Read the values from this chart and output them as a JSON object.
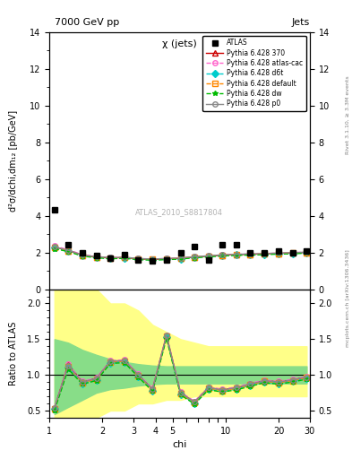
{
  "title_top": "7000 GeV pp",
  "title_right": "Jets",
  "plot_title": "χ (jets)",
  "xlabel": "chi",
  "ylabel_main": "d²σ/dchi,dm₁₂ [pb/GeV]",
  "ylabel_ratio": "Ratio to ATLAS",
  "watermark": "ATLAS_2010_S8817804",
  "rivet_label": "Rivet 3.1.10, ≥ 3.3M events",
  "arxiv_label": "mcplots.cern.ch [arXiv:1306.3436]",
  "xlim": [
    1,
    30
  ],
  "ylim_main": [
    0,
    14
  ],
  "ylim_ratio": [
    0.4,
    2.2
  ],
  "chi_values": [
    1.07,
    1.28,
    1.54,
    1.85,
    2.22,
    2.67,
    3.2,
    3.85,
    4.62,
    5.55,
    6.66,
    8.0,
    9.6,
    11.5,
    13.8,
    16.6,
    20.0,
    24.0,
    28.8
  ],
  "atlas_data": [
    4.3,
    2.4,
    2.0,
    1.85,
    1.7,
    1.9,
    1.6,
    1.55,
    1.6,
    2.0,
    2.3,
    1.6,
    2.4,
    2.4,
    2.0,
    2.0,
    2.1,
    2.0,
    2.1
  ],
  "pythia_370": [
    2.3,
    2.1,
    1.85,
    1.75,
    1.7,
    1.72,
    1.65,
    1.62,
    1.65,
    1.68,
    1.75,
    1.8,
    1.85,
    1.88,
    1.9,
    1.92,
    1.95,
    1.97,
    2.0
  ],
  "pythia_atl": [
    2.35,
    2.15,
    1.88,
    1.78,
    1.72,
    1.74,
    1.67,
    1.64,
    1.67,
    1.7,
    1.77,
    1.82,
    1.87,
    1.9,
    1.92,
    1.94,
    1.97,
    1.99,
    2.02
  ],
  "pythia_d6t": [
    2.25,
    2.08,
    1.82,
    1.73,
    1.68,
    1.7,
    1.63,
    1.6,
    1.63,
    1.66,
    1.73,
    1.78,
    1.83,
    1.86,
    1.88,
    1.9,
    1.93,
    1.95,
    1.98
  ],
  "pythia_def": [
    2.28,
    2.1,
    1.84,
    1.75,
    1.7,
    1.72,
    1.65,
    1.62,
    1.65,
    1.68,
    1.75,
    1.8,
    1.85,
    1.88,
    1.9,
    1.92,
    1.95,
    1.97,
    2.0
  ],
  "pythia_dw": [
    2.2,
    2.05,
    1.8,
    1.71,
    1.66,
    1.68,
    1.61,
    1.58,
    1.61,
    1.64,
    1.71,
    1.76,
    1.81,
    1.84,
    1.86,
    1.88,
    1.91,
    1.93,
    1.96
  ],
  "pythia_p0": [
    2.3,
    2.12,
    1.86,
    1.77,
    1.72,
    1.74,
    1.67,
    1.64,
    1.67,
    1.7,
    1.77,
    1.82,
    1.87,
    1.9,
    1.92,
    1.94,
    1.97,
    1.99,
    2.02
  ],
  "ratio_370": [
    0.53,
    1.15,
    0.9,
    0.95,
    1.19,
    1.2,
    1.0,
    0.8,
    1.55,
    0.75,
    0.62,
    0.82,
    0.79,
    0.82,
    0.87,
    0.92,
    0.9,
    0.93,
    0.97
  ],
  "ratio_atl": [
    0.54,
    1.15,
    0.91,
    0.96,
    1.2,
    1.21,
    1.01,
    0.81,
    1.56,
    0.76,
    0.63,
    0.83,
    0.8,
    0.83,
    0.88,
    0.93,
    0.91,
    0.94,
    0.98
  ],
  "ratio_d6t": [
    0.52,
    1.1,
    0.88,
    0.93,
    1.17,
    1.18,
    0.98,
    0.78,
    1.53,
    0.73,
    0.6,
    0.8,
    0.77,
    0.8,
    0.85,
    0.9,
    0.88,
    0.91,
    0.95
  ],
  "ratio_def": [
    0.52,
    1.12,
    0.89,
    0.94,
    1.18,
    1.19,
    0.99,
    0.79,
    1.54,
    0.74,
    0.61,
    0.81,
    0.78,
    0.81,
    0.86,
    0.91,
    0.89,
    0.92,
    0.96
  ],
  "ratio_dw": [
    0.5,
    1.08,
    0.87,
    0.92,
    1.16,
    1.17,
    0.97,
    0.77,
    1.51,
    0.72,
    0.59,
    0.79,
    0.76,
    0.79,
    0.84,
    0.89,
    0.87,
    0.9,
    0.94
  ],
  "ratio_p0": [
    0.54,
    1.13,
    0.9,
    0.95,
    1.19,
    1.2,
    1.0,
    0.8,
    1.55,
    0.75,
    0.62,
    0.82,
    0.79,
    0.82,
    0.87,
    0.92,
    0.9,
    0.93,
    0.97
  ],
  "band_yellow_lo": [
    0.4,
    0.4,
    0.4,
    0.4,
    0.5,
    0.5,
    0.6,
    0.6,
    0.65,
    0.65,
    0.7,
    0.7,
    0.7,
    0.7,
    0.7,
    0.7,
    0.7,
    0.7,
    0.7
  ],
  "band_yellow_hi": [
    2.2,
    2.2,
    2.2,
    2.2,
    2.0,
    2.0,
    1.9,
    1.7,
    1.6,
    1.5,
    1.45,
    1.4,
    1.4,
    1.4,
    1.4,
    1.4,
    1.4,
    1.4,
    1.4
  ],
  "band_green_lo": [
    0.45,
    0.55,
    0.65,
    0.75,
    0.8,
    0.82,
    0.85,
    0.87,
    0.88,
    0.88,
    0.88,
    0.88,
    0.88,
    0.88,
    0.88,
    0.88,
    0.88,
    0.88,
    0.88
  ],
  "band_green_hi": [
    1.5,
    1.45,
    1.35,
    1.28,
    1.22,
    1.18,
    1.15,
    1.13,
    1.12,
    1.12,
    1.12,
    1.12,
    1.12,
    1.12,
    1.12,
    1.12,
    1.12,
    1.12,
    1.12
  ],
  "color_370": "#cc0000",
  "color_atl": "#ff66cc",
  "color_d6t": "#00cccc",
  "color_def": "#ff8800",
  "color_dw": "#00bb00",
  "color_p0": "#888888"
}
